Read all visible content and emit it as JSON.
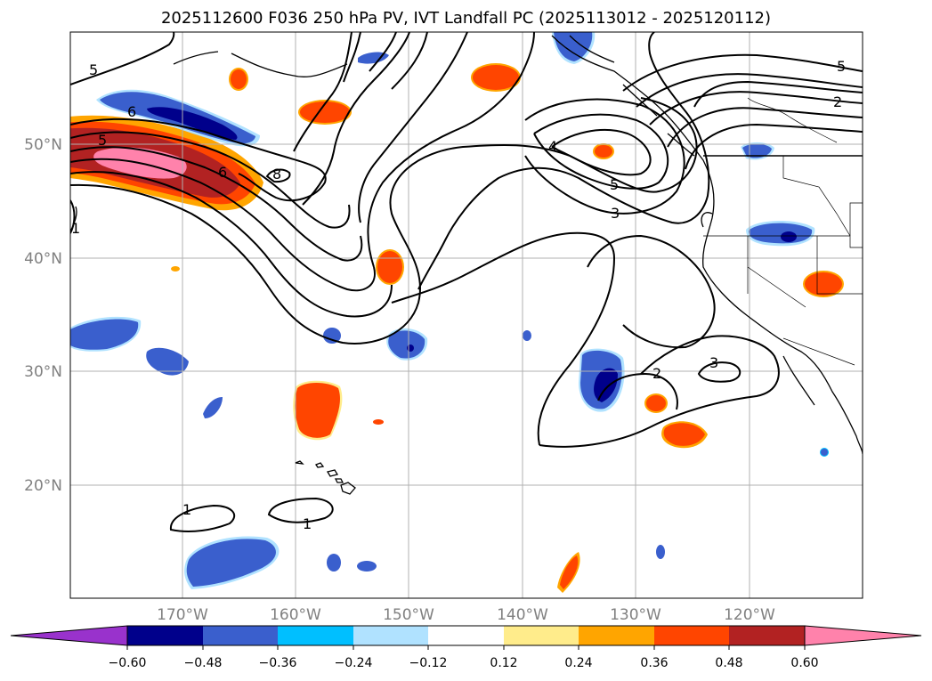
{
  "title": "2025112600 F036 250 hPa PV, IVT Landfall PC (2025113012 - 2025120112)",
  "lat_labels": [
    "50°N",
    "40°N",
    "30°N",
    "20°N"
  ],
  "lon_labels": [
    "170°W",
    "160°W",
    "150°W",
    "140°W",
    "130°W",
    "120°W"
  ],
  "colorbar": {
    "tick_labels": [
      "−0.60",
      "−0.48",
      "−0.36",
      "−0.24",
      "−0.12",
      "0.12",
      "0.24",
      "0.36",
      "0.48",
      "0.60"
    ],
    "colors": [
      "#9932cc",
      "#00008b",
      "#3a5fcd",
      "#00bfff",
      "#b0e2ff",
      "#ffffff",
      "#ffec8b",
      "#ffa500",
      "#ff4500",
      "#b22222",
      "#ff82ab"
    ]
  },
  "contour_labels": [
    "5",
    "6",
    "5",
    "6",
    "8",
    "1",
    "4",
    "5",
    "3",
    "5",
    "2",
    "2",
    "3",
    "1",
    "1"
  ],
  "colors": {
    "positive_strong": "#ff82ab",
    "positive_high": "#b22222",
    "positive_mid": "#ff4500",
    "positive_low": "#ffa500",
    "positive_faint": "#ffec8b",
    "negative_strong": "#00008b",
    "negative_mid": "#3a5fcd",
    "negative_low": "#00bfff",
    "negative_faint": "#b0e2ff"
  }
}
